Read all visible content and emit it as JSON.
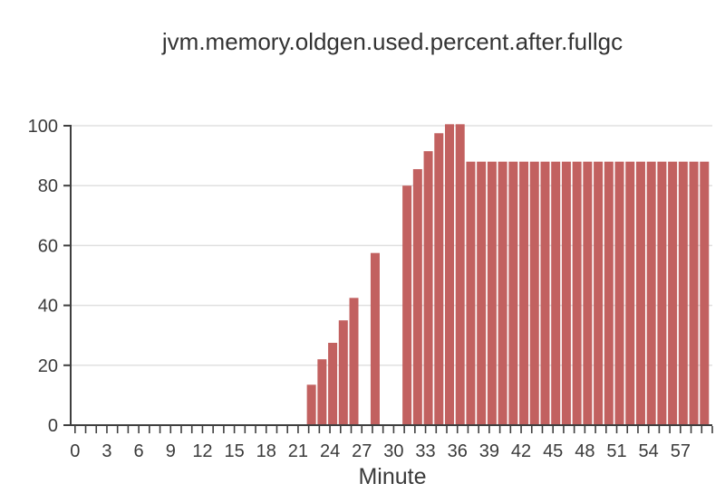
{
  "chart_data": {
    "type": "bar",
    "title": "jvm.memory.oldgen.used.percent.after.fullgc",
    "xlabel": "Minute",
    "ylabel": "",
    "xlim": [
      0,
      60
    ],
    "ylim": [
      0,
      100
    ],
    "x_tick_step": 1,
    "x_label_step": 3,
    "x_label_max": 57,
    "y_ticks": [
      0,
      20,
      40,
      60,
      80,
      100
    ],
    "grid": true,
    "legend_position": "none",
    "series": [
      {
        "name": "jvm.memory.oldgen.used.percent.after.fullgc",
        "points": [
          {
            "x": 22,
            "y": 13.5
          },
          {
            "x": 23,
            "y": 22
          },
          {
            "x": 24,
            "y": 27.5
          },
          {
            "x": 25,
            "y": 35
          },
          {
            "x": 26,
            "y": 42.5
          },
          {
            "x": 28,
            "y": 57.5
          },
          {
            "x": 31,
            "y": 80
          },
          {
            "x": 32,
            "y": 85.5
          },
          {
            "x": 33,
            "y": 91.5
          },
          {
            "x": 34,
            "y": 97.5
          },
          {
            "x": 35,
            "y": 100.5
          },
          {
            "x": 36,
            "y": 100.5
          },
          {
            "x": 37,
            "y": 88
          },
          {
            "x": 38,
            "y": 88
          },
          {
            "x": 39,
            "y": 88
          },
          {
            "x": 40,
            "y": 88
          },
          {
            "x": 41,
            "y": 88
          },
          {
            "x": 42,
            "y": 88
          },
          {
            "x": 43,
            "y": 88
          },
          {
            "x": 44,
            "y": 88
          },
          {
            "x": 45,
            "y": 88
          },
          {
            "x": 46,
            "y": 88
          },
          {
            "x": 47,
            "y": 88
          },
          {
            "x": 48,
            "y": 88
          },
          {
            "x": 49,
            "y": 88
          },
          {
            "x": 50,
            "y": 88
          },
          {
            "x": 51,
            "y": 88
          },
          {
            "x": 52,
            "y": 88
          },
          {
            "x": 53,
            "y": 88
          },
          {
            "x": 54,
            "y": 88
          },
          {
            "x": 55,
            "y": 88
          },
          {
            "x": 56,
            "y": 88
          },
          {
            "x": 57,
            "y": 88
          },
          {
            "x": 58,
            "y": 88
          },
          {
            "x": 59,
            "y": 88
          }
        ]
      }
    ]
  },
  "colors": {
    "bar": "#c26160",
    "axis": "#3f3f3f",
    "grid": "#e0e0e0",
    "text": "#3a3a3a",
    "background": "#ffffff"
  }
}
